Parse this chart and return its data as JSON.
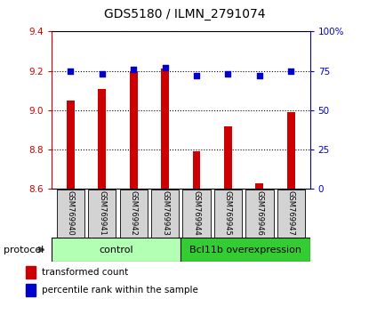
{
  "title": "GDS5180 / ILMN_2791074",
  "samples": [
    "GSM769940",
    "GSM769941",
    "GSM769942",
    "GSM769943",
    "GSM769944",
    "GSM769945",
    "GSM769946",
    "GSM769947"
  ],
  "red_values": [
    9.05,
    9.11,
    9.2,
    9.21,
    8.79,
    8.92,
    8.63,
    8.99
  ],
  "blue_values": [
    75,
    73,
    76,
    77,
    72,
    73,
    72,
    75
  ],
  "ylim_left": [
    8.6,
    9.4
  ],
  "ylim_right": [
    0,
    100
  ],
  "yticks_left": [
    8.6,
    8.8,
    9.0,
    9.2,
    9.4
  ],
  "yticks_right": [
    0,
    25,
    50,
    75,
    100
  ],
  "ytick_labels_right": [
    "0",
    "25",
    "50",
    "75",
    "100%"
  ],
  "control_samples": 4,
  "group_labels": [
    "control",
    "Bcl11b overexpression"
  ],
  "group_colors": [
    "#b3ffb3",
    "#33cc33"
  ],
  "bar_color": "#cc0000",
  "dot_color": "#0000cc",
  "protocol_label": "protocol",
  "legend_red": "transformed count",
  "legend_blue": "percentile rank within the sample",
  "background_color": "#ffffff",
  "sample_box_color": "#d3d3d3",
  "left_axis_color": "#cc0000",
  "right_axis_color": "#0000cc"
}
